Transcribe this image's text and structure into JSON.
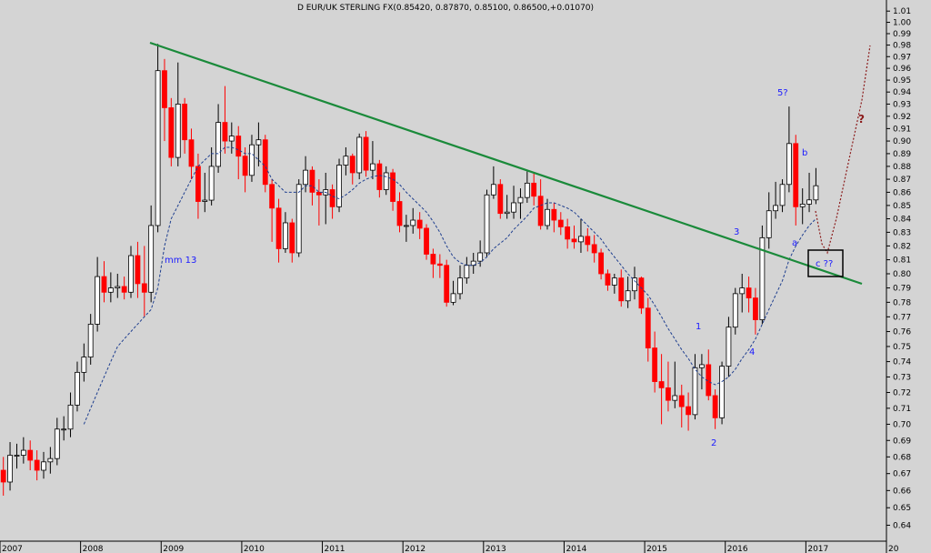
{
  "chart_data": {
    "type": "candlestick",
    "title": "D EUR/UK STERLING FX(0.85420, 0.87870, 0.85100, 0.86500,+0.01070)",
    "annotations": [
      "mm 13",
      "1",
      "2",
      "3",
      "4",
      "5?",
      "a",
      "b",
      "c ??",
      "?"
    ],
    "log_scale": true,
    "up_color": "#ffffff",
    "down_color": "#ff0000",
    "ma_color": "#1f3f8f",
    "xlim": [
      2007,
      2018
    ],
    "xticks": [
      2007,
      2008,
      2009,
      2010,
      2011,
      2012,
      2013,
      2014,
      2015,
      2016,
      2017,
      {
        "value": 2018,
        "label": "20"
      }
    ],
    "ylim": [
      0.631,
      1.02
    ],
    "yticks": [
      0.64,
      0.65,
      0.66,
      0.67,
      0.68,
      0.69,
      {
        "value": 0.7,
        "label": "0.70"
      },
      0.71,
      0.72,
      0.73,
      0.74,
      0.75,
      0.76,
      0.77,
      0.78,
      0.79,
      {
        "value": 0.8,
        "label": "0.80"
      },
      0.81,
      0.82,
      0.83,
      0.84,
      0.85,
      0.86,
      0.87,
      0.88,
      0.89,
      {
        "value": 0.9,
        "label": "0.90"
      },
      0.91,
      0.92,
      0.93,
      0.94,
      0.95,
      0.96,
      0.97,
      0.98,
      0.99,
      {
        "value": 1,
        "label": "1.00"
      },
      1.01
    ],
    "x": [
      2007,
      2007.083,
      2007.167,
      2007.25,
      2007.333,
      2007.417,
      2007.5,
      2007.583,
      2007.667,
      2007.75,
      2007.833,
      2007.917,
      2008,
      2008.083,
      2008.167,
      2008.25,
      2008.333,
      2008.417,
      2008.5,
      2008.583,
      2008.667,
      2008.75,
      2008.833,
      2008.917,
      2009,
      2009.083,
      2009.167,
      2009.25,
      2009.333,
      2009.417,
      2009.5,
      2009.583,
      2009.667,
      2009.75,
      2009.833,
      2009.917,
      2010,
      2010.083,
      2010.167,
      2010.25,
      2010.333,
      2010.417,
      2010.5,
      2010.583,
      2010.667,
      2010.75,
      2010.833,
      2010.917,
      2011,
      2011.083,
      2011.167,
      2011.25,
      2011.333,
      2011.417,
      2011.5,
      2011.583,
      2011.667,
      2011.75,
      2011.833,
      2011.917,
      2012,
      2012.083,
      2012.167,
      2012.25,
      2012.333,
      2012.417,
      2012.5,
      2012.583,
      2012.667,
      2012.75,
      2012.833,
      2012.917,
      2013,
      2013.083,
      2013.167,
      2013.25,
      2013.333,
      2013.417,
      2013.5,
      2013.583,
      2013.667,
      2013.75,
      2013.833,
      2013.917,
      2014,
      2014.083,
      2014.167,
      2014.25,
      2014.333,
      2014.417,
      2014.5,
      2014.583,
      2014.667,
      2014.75,
      2014.833,
      2014.917,
      2015,
      2015.083,
      2015.167,
      2015.25,
      2015.333,
      2015.417,
      2015.5,
      2015.583,
      2015.667,
      2015.75,
      2015.833,
      2015.917,
      2016,
      2016.083,
      2016.167,
      2016.25,
      2016.333,
      2016.417,
      2016.5,
      2016.583,
      2016.667,
      2016.75,
      2016.833,
      2016.917,
      2017,
      2017.083
    ],
    "open": [
      0.672,
      0.665,
      0.681,
      0.681,
      0.684,
      0.678,
      0.672,
      0.677,
      0.679,
      0.697,
      0.697,
      0.712,
      0.733,
      0.743,
      0.765,
      0.798,
      0.787,
      0.79,
      0.791,
      0.787,
      0.813,
      0.793,
      0.787,
      0.835,
      0.958,
      0.927,
      0.887,
      0.93,
      0.901,
      0.88,
      0.853,
      0.854,
      0.88,
      0.915,
      0.9,
      0.904,
      0.888,
      0.873,
      0.897,
      0.901,
      0.866,
      0.848,
      0.818,
      0.837,
      0.815,
      0.866,
      0.877,
      0.86,
      0.858,
      0.862,
      0.849,
      0.881,
      0.888,
      0.875,
      0.903,
      0.877,
      0.882,
      0.862,
      0.875,
      0.853,
      0.835,
      0.835,
      0.839,
      0.833,
      0.814,
      0.807,
      0.806,
      0.78,
      0.786,
      0.797,
      0.806,
      0.809,
      0.815,
      0.858,
      0.866,
      0.844,
      0.845,
      0.852,
      0.856,
      0.867,
      0.857,
      0.835,
      0.847,
      0.839,
      0.834,
      0.825,
      0.823,
      0.827,
      0.821,
      0.815,
      0.8,
      0.792,
      0.797,
      0.781,
      0.788,
      0.797,
      0.776,
      0.749,
      0.727,
      0.723,
      0.715,
      0.718,
      0.711,
      0.706,
      0.736,
      0.738,
      0.718,
      0.704,
      0.737,
      0.763,
      0.786,
      0.79,
      0.783,
      0.768,
      0.826,
      0.846,
      0.85,
      0.866,
      0.898,
      0.849,
      0.851,
      0.8542
    ],
    "high": [
      0.68,
      0.689,
      0.688,
      0.692,
      0.69,
      0.684,
      0.683,
      0.686,
      0.704,
      0.705,
      0.72,
      0.74,
      0.752,
      0.772,
      0.812,
      0.809,
      0.801,
      0.8,
      0.798,
      0.82,
      0.823,
      0.82,
      0.85,
      0.981,
      0.968,
      0.935,
      0.965,
      0.935,
      0.91,
      0.89,
      0.875,
      0.895,
      0.93,
      0.945,
      0.915,
      0.912,
      0.895,
      0.905,
      0.915,
      0.905,
      0.87,
      0.855,
      0.845,
      0.84,
      0.87,
      0.888,
      0.88,
      0.87,
      0.875,
      0.866,
      0.886,
      0.895,
      0.89,
      0.906,
      0.908,
      0.9,
      0.885,
      0.88,
      0.878,
      0.86,
      0.843,
      0.848,
      0.845,
      0.836,
      0.818,
      0.814,
      0.81,
      0.795,
      0.806,
      0.812,
      0.815,
      0.824,
      0.862,
      0.88,
      0.87,
      0.858,
      0.865,
      0.863,
      0.876,
      0.875,
      0.87,
      0.855,
      0.852,
      0.845,
      0.84,
      0.835,
      0.84,
      0.833,
      0.828,
      0.818,
      0.803,
      0.8,
      0.803,
      0.798,
      0.805,
      0.798,
      0.783,
      0.76,
      0.745,
      0.74,
      0.74,
      0.725,
      0.72,
      0.745,
      0.745,
      0.748,
      0.722,
      0.74,
      0.77,
      0.79,
      0.8,
      0.798,
      0.79,
      0.835,
      0.86,
      0.868,
      0.87,
      0.928,
      0.905,
      0.863,
      0.875,
      0.8787
    ],
    "low": [
      0.657,
      0.66,
      0.673,
      0.676,
      0.672,
      0.666,
      0.667,
      0.67,
      0.675,
      0.69,
      0.692,
      0.708,
      0.727,
      0.738,
      0.76,
      0.78,
      0.78,
      0.783,
      0.782,
      0.783,
      0.783,
      0.77,
      0.78,
      0.83,
      0.9,
      0.88,
      0.88,
      0.89,
      0.87,
      0.84,
      0.845,
      0.85,
      0.875,
      0.89,
      0.89,
      0.87,
      0.86,
      0.868,
      0.88,
      0.86,
      0.823,
      0.808,
      0.815,
      0.808,
      0.812,
      0.86,
      0.85,
      0.835,
      0.836,
      0.84,
      0.845,
      0.873,
      0.866,
      0.87,
      0.872,
      0.87,
      0.856,
      0.858,
      0.846,
      0.83,
      0.823,
      0.829,
      0.825,
      0.81,
      0.797,
      0.797,
      0.777,
      0.778,
      0.782,
      0.793,
      0.8,
      0.805,
      0.812,
      0.855,
      0.84,
      0.84,
      0.84,
      0.84,
      0.852,
      0.85,
      0.832,
      0.832,
      0.83,
      0.828,
      0.818,
      0.818,
      0.815,
      0.816,
      0.808,
      0.796,
      0.788,
      0.786,
      0.777,
      0.776,
      0.782,
      0.772,
      0.74,
      0.72,
      0.7,
      0.708,
      0.71,
      0.698,
      0.696,
      0.703,
      0.722,
      0.715,
      0.697,
      0.7,
      0.73,
      0.758,
      0.773,
      0.773,
      0.758,
      0.765,
      0.818,
      0.84,
      0.845,
      0.86,
      0.835,
      0.836,
      0.845,
      0.851
    ],
    "close": [
      0.665,
      0.681,
      0.681,
      0.684,
      0.678,
      0.672,
      0.677,
      0.679,
      0.697,
      0.697,
      0.712,
      0.733,
      0.743,
      0.765,
      0.798,
      0.787,
      0.79,
      0.791,
      0.787,
      0.813,
      0.793,
      0.787,
      0.835,
      0.958,
      0.927,
      0.887,
      0.93,
      0.901,
      0.88,
      0.853,
      0.854,
      0.88,
      0.915,
      0.9,
      0.904,
      0.888,
      0.873,
      0.897,
      0.901,
      0.866,
      0.848,
      0.818,
      0.837,
      0.815,
      0.866,
      0.877,
      0.86,
      0.858,
      0.862,
      0.849,
      0.881,
      0.888,
      0.875,
      0.903,
      0.877,
      0.882,
      0.862,
      0.875,
      0.853,
      0.835,
      0.835,
      0.839,
      0.833,
      0.814,
      0.807,
      0.806,
      0.78,
      0.786,
      0.797,
      0.806,
      0.809,
      0.815,
      0.858,
      0.866,
      0.844,
      0.845,
      0.852,
      0.856,
      0.867,
      0.857,
      0.835,
      0.847,
      0.839,
      0.834,
      0.825,
      0.823,
      0.827,
      0.821,
      0.815,
      0.8,
      0.792,
      0.797,
      0.781,
      0.788,
      0.797,
      0.776,
      0.749,
      0.727,
      0.723,
      0.715,
      0.718,
      0.711,
      0.706,
      0.736,
      0.738,
      0.718,
      0.704,
      0.737,
      0.763,
      0.786,
      0.79,
      0.783,
      0.768,
      0.826,
      0.846,
      0.85,
      0.866,
      0.898,
      0.849,
      0.851,
      0.8542,
      0.865
    ],
    "ma": [
      null,
      null,
      null,
      null,
      null,
      null,
      null,
      null,
      null,
      null,
      null,
      null,
      0.7,
      0.71,
      0.72,
      0.73,
      0.74,
      0.75,
      0.755,
      0.76,
      0.765,
      0.77,
      0.775,
      0.79,
      0.82,
      0.84,
      0.85,
      0.86,
      0.87,
      0.88,
      0.885,
      0.89,
      0.89,
      0.895,
      0.895,
      0.893,
      0.89,
      0.89,
      0.885,
      0.88,
      0.87,
      0.865,
      0.86,
      0.86,
      0.86,
      0.865,
      0.865,
      0.86,
      0.86,
      0.857,
      0.855,
      0.858,
      0.862,
      0.867,
      0.87,
      0.872,
      0.873,
      0.872,
      0.87,
      0.866,
      0.86,
      0.855,
      0.85,
      0.845,
      0.838,
      0.83,
      0.82,
      0.812,
      0.808,
      0.806,
      0.806,
      0.808,
      0.812,
      0.818,
      0.822,
      0.826,
      0.832,
      0.837,
      0.842,
      0.848,
      0.85,
      0.852,
      0.852,
      0.85,
      0.848,
      0.845,
      0.84,
      0.835,
      0.83,
      0.825,
      0.818,
      0.812,
      0.806,
      0.8,
      0.795,
      0.79,
      0.785,
      0.778,
      0.77,
      0.762,
      0.755,
      0.748,
      0.742,
      0.735,
      0.73,
      0.727,
      0.725,
      0.727,
      0.73,
      0.735,
      0.742,
      0.748,
      0.755,
      0.765,
      0.775,
      0.785,
      0.795,
      0.81,
      0.82,
      0.828,
      0.835,
      0.84
    ]
  }
}
